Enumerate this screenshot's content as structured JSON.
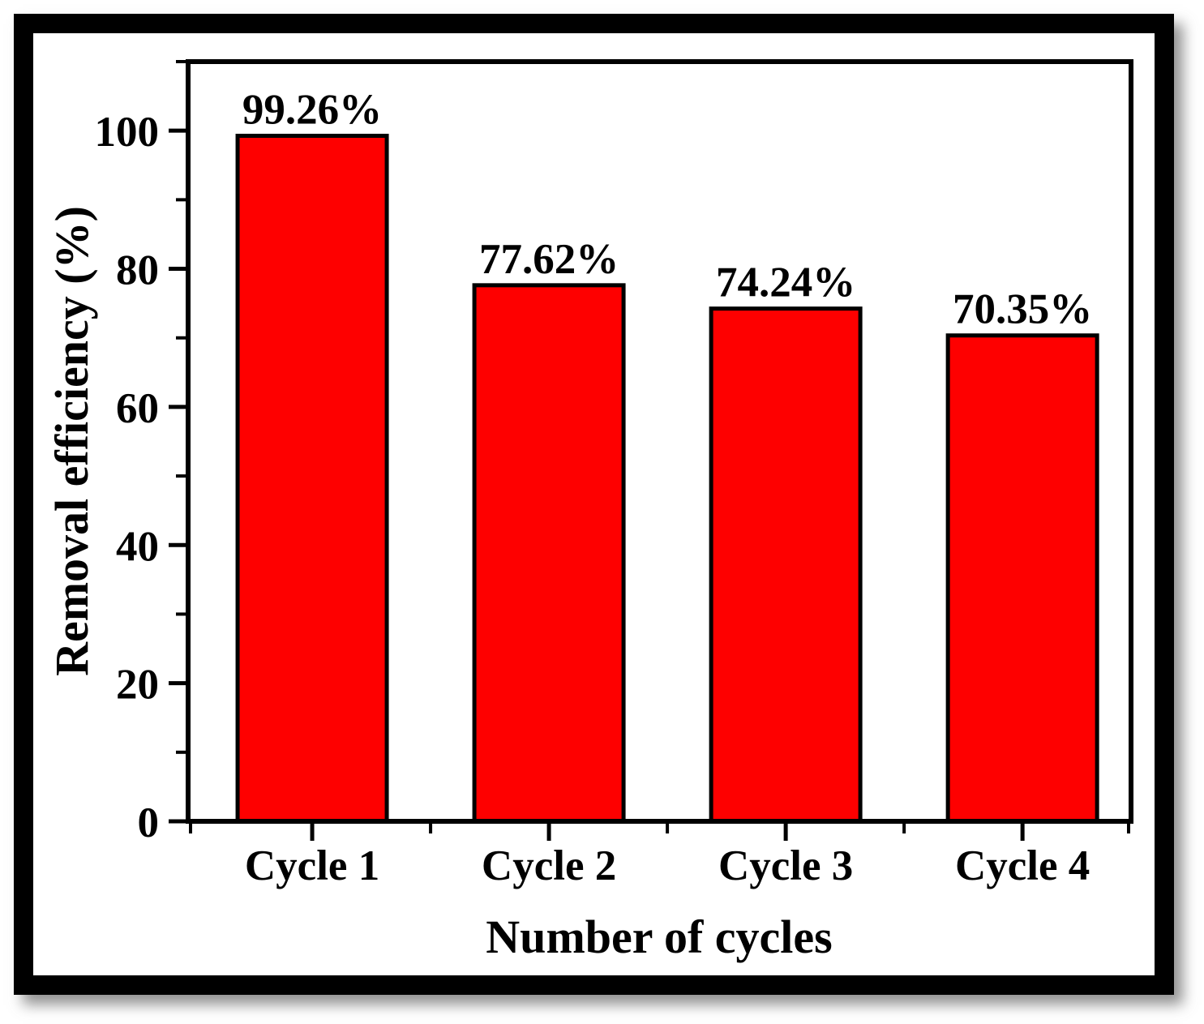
{
  "figure": {
    "background": "#ffffff",
    "frame_border_color": "#000000",
    "shadow_color": "#9a9a9a"
  },
  "chart_data": {
    "type": "bar",
    "title": "",
    "xlabel": "Number of cycles",
    "ylabel": "Removal efficiency (%)",
    "categories": [
      "Cycle 1",
      "Cycle 2",
      "Cycle 3",
      "Cycle 4"
    ],
    "values": [
      99.26,
      77.62,
      74.24,
      70.35
    ],
    "value_labels": [
      "99.26%",
      "77.62%",
      "74.24%",
      "70.35%"
    ],
    "ylim": [
      0,
      110
    ],
    "y_major_ticks": [
      0,
      20,
      40,
      60,
      80,
      100
    ],
    "y_major_tick_labels": [
      "0",
      "20",
      "40",
      "60",
      "80",
      "100"
    ],
    "y_minor_ticks": [
      10,
      30,
      50,
      70,
      90,
      110
    ],
    "bar_color": "#fe0000",
    "bar_border_color": "#000000",
    "axis_color": "#000000",
    "text_color": "#000000",
    "grid": false,
    "legend": null
  }
}
